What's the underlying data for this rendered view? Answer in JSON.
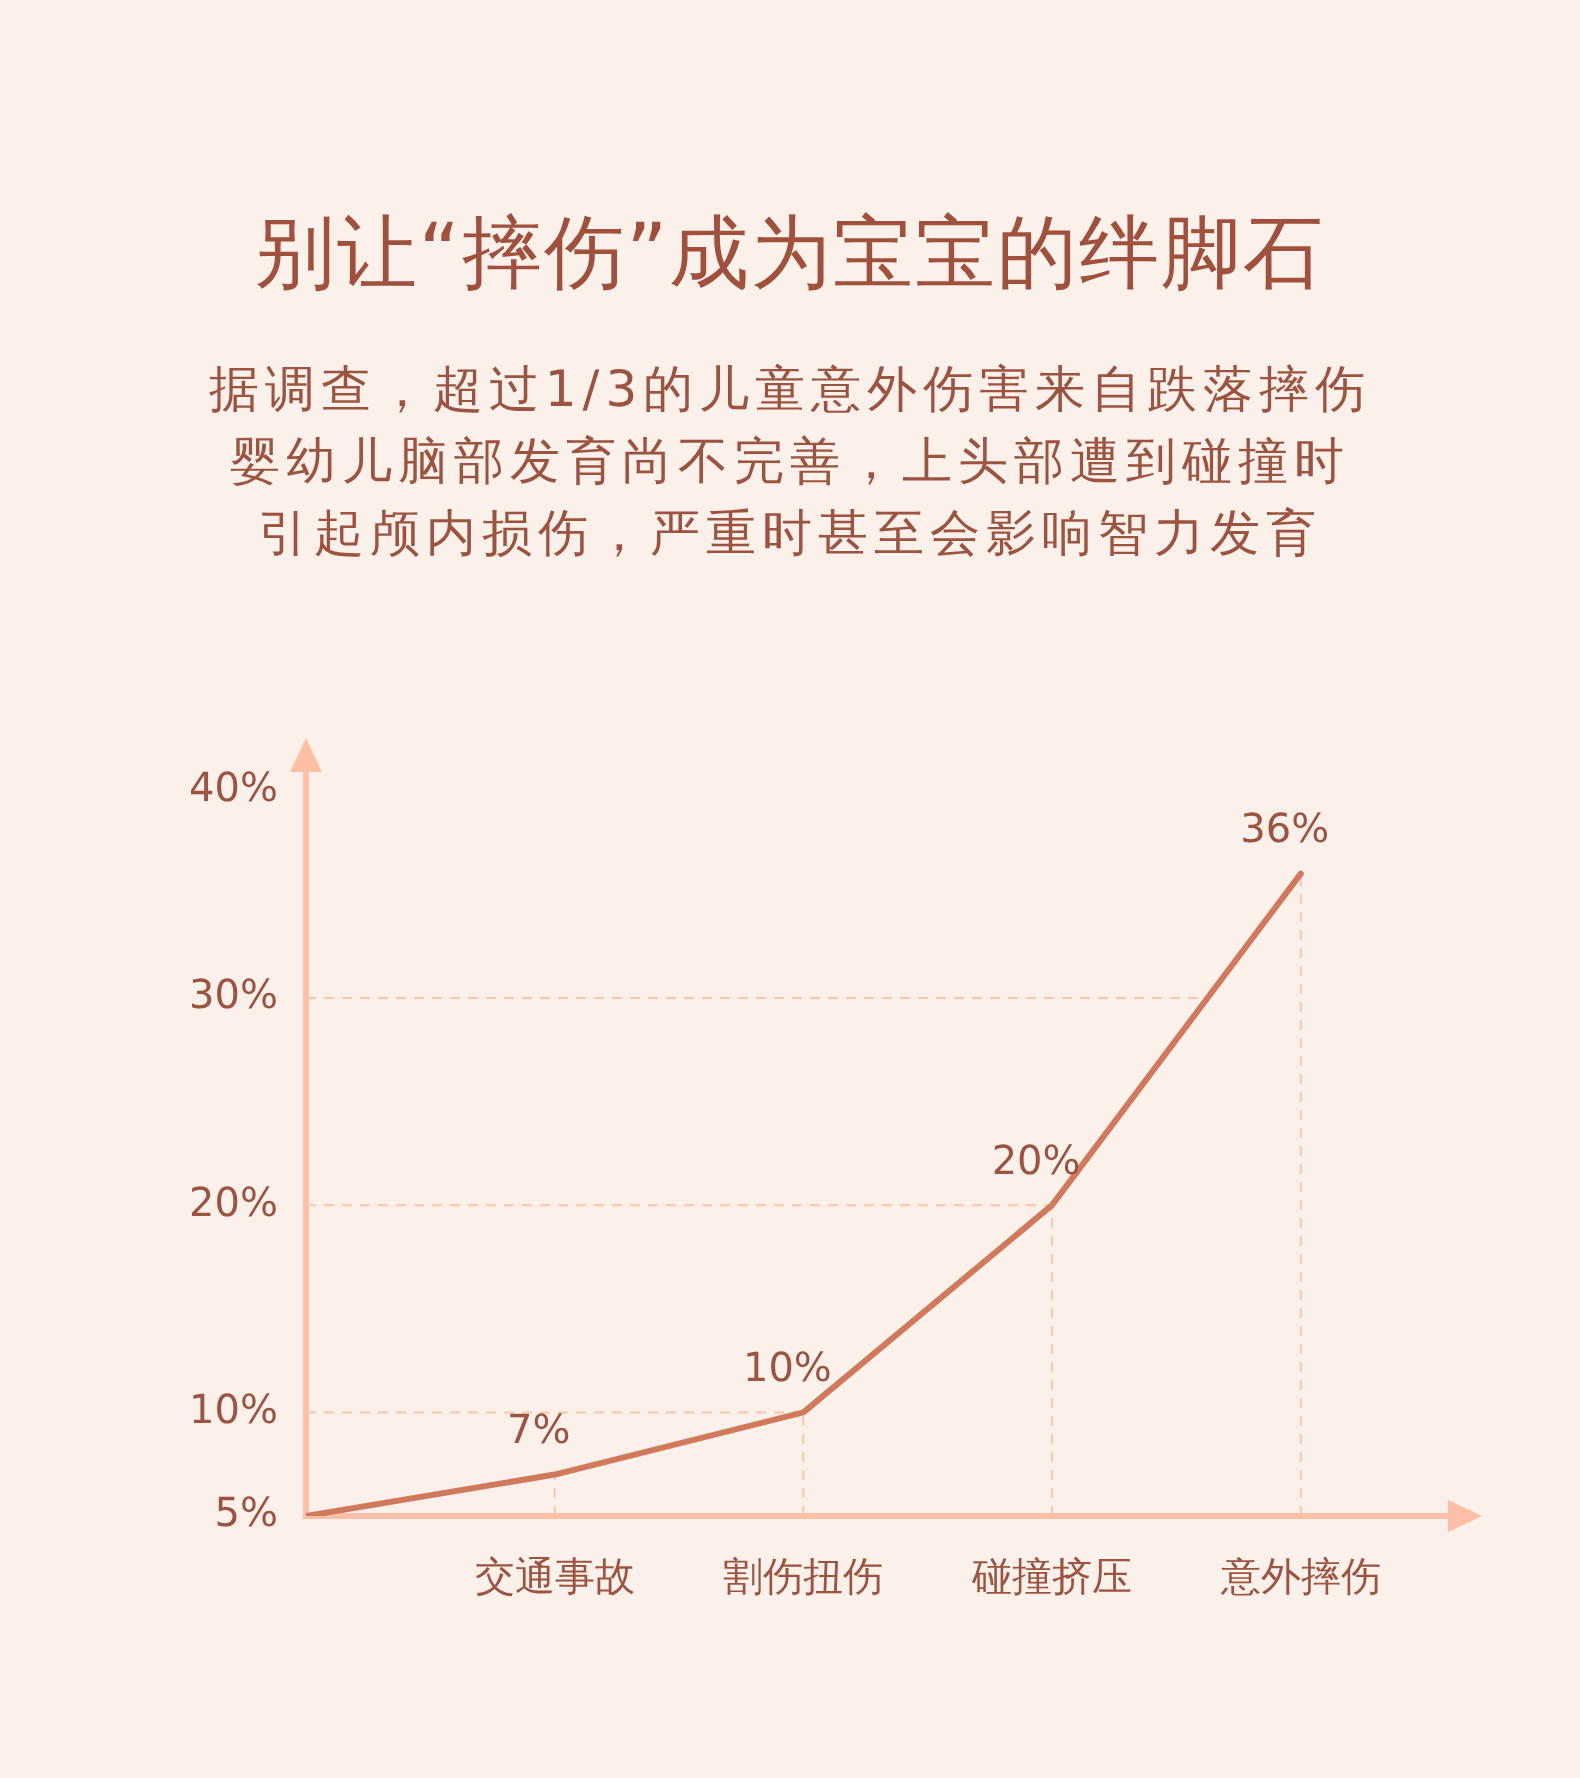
{
  "chart_data": {
    "type": "line",
    "title": "别让“摔伤”成为宝宝的绊脚石",
    "subtitle": "据调查，超过1/3的儿童意外伤害来自跌落摔伤婴幼儿脑部发育尚不完善，上头部遭到碰撞时引起颅内损伤，严重时甚至会影响智力发育",
    "categories": [
      null,
      "交通事故",
      "割伤扭伤",
      "碰撞挤压",
      "意外摔伤"
    ],
    "series": [
      {
        "color": "#cf7a5c",
        "values": [
          5,
          7,
          10,
          20,
          36
        ],
        "value_labels": [
          null,
          "7%",
          "10%",
          "20%",
          "36%"
        ]
      }
    ],
    "ylim": [
      5,
      41
    ],
    "yticks": [
      {
        "value": 5,
        "label": "5%"
      },
      {
        "value": 10,
        "label": "10%"
      },
      {
        "value": 20,
        "label": "20%"
      },
      {
        "value": 30,
        "label": "30%"
      },
      {
        "value": 40,
        "label": "40%"
      }
    ],
    "grid": true,
    "marker": "none",
    "line_style": "solid"
  }
}
